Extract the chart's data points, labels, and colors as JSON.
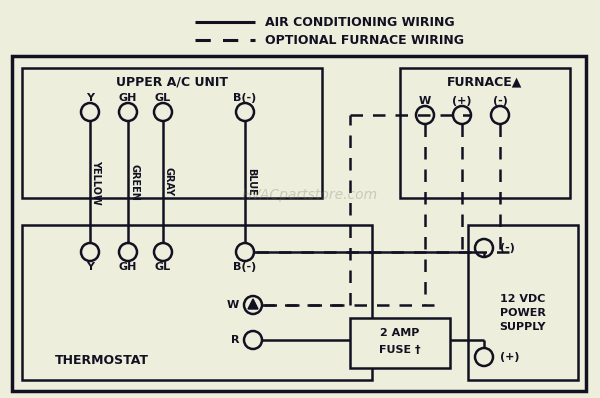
{
  "bg_color": "#eeeedd",
  "white_bg": "#f0f0e0",
  "line_color": "#111122",
  "title": "AIR CONDITIONING WIRING",
  "subtitle": "OPTIONAL FURNACE WIRING",
  "watermark": "HVACpartstore.com",
  "upper_ac_label": "UPPER A/C UNIT",
  "furnace_label": "FURNACE▲",
  "thermostat_label": "THERMOSTAT",
  "power_supply_lines": [
    "12 VDC",
    "POWER",
    "SUPPLY"
  ],
  "fuse_line1": "2 AMP",
  "fuse_line2": "FUSE †",
  "wire_labels_upper": [
    "Y",
    "GH",
    "GL",
    "B(-)"
  ],
  "wire_labels_vert": [
    "YELLOW",
    "GREEN",
    "GRAY",
    "BLUE"
  ],
  "furnace_terminals": [
    "W",
    "(+)",
    "(-)"
  ],
  "ps_neg": "(-)",
  "ps_pos": "(+)"
}
